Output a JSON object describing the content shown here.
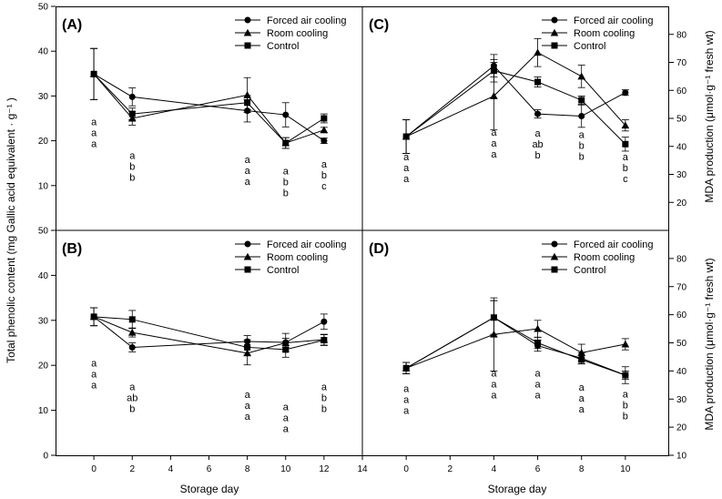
{
  "figure": {
    "ylabel_left": "Total phenolic content (mg Gallic acid equivalent · g⁻¹ )",
    "ylabel_right": "MDA production (μmol·g⁻¹ fresh wt)",
    "xlabel": "Storage day"
  },
  "chart_data": [
    {
      "type": "line",
      "panel": "(A)",
      "xlim": [
        -2,
        14
      ],
      "ylim": [
        0,
        50
      ],
      "xticks": [
        0,
        2,
        4,
        6,
        8,
        10,
        12,
        14
      ],
      "yticks": [
        10,
        20,
        30,
        40,
        50
      ],
      "ytick_side": "left",
      "legend": "top-right",
      "x": [
        0,
        2,
        8,
        10,
        12
      ],
      "series": [
        {
          "name": "Forced air cooling",
          "marker": "circle",
          "values": [
            34.9,
            29.8,
            26.7,
            25.8,
            20.0
          ],
          "errors": [
            5.7,
            2.0,
            2.5,
            2.7,
            0.6
          ]
        },
        {
          "name": "Room cooling",
          "marker": "triangle",
          "values": [
            34.9,
            25.0,
            30.2,
            19.5,
            22.4
          ],
          "errors": [
            5.7,
            1.5,
            3.9,
            1.2,
            0.6
          ]
        },
        {
          "name": "Control",
          "marker": "square",
          "values": [
            34.9,
            26.0,
            28.5,
            19.5,
            25.0
          ],
          "errors": [
            5.7,
            1.3,
            1.6,
            1.2,
            1.0
          ]
        }
      ],
      "letters": [
        {
          "x": 0,
          "y": 23.5,
          "text": [
            "a",
            "a",
            "a"
          ]
        },
        {
          "x": 2,
          "y": 16.0,
          "text": [
            "a",
            "b",
            "b"
          ]
        },
        {
          "x": 8,
          "y": 15.0,
          "text": [
            "a",
            "a",
            "a"
          ]
        },
        {
          "x": 10,
          "y": 12.5,
          "text": [
            "a",
            "b",
            "b"
          ]
        },
        {
          "x": 12,
          "y": 14.0,
          "text": [
            "a",
            "b",
            "c"
          ]
        }
      ]
    },
    {
      "type": "line",
      "panel": "(C)",
      "xlim": [
        -2,
        12
      ],
      "ylim": [
        10,
        90
      ],
      "xticks": [
        0,
        2,
        4,
        6,
        8,
        10
      ],
      "yticks": [
        20,
        30,
        40,
        50,
        60,
        70,
        80
      ],
      "ytick_side": "right",
      "legend": "top-right",
      "x": [
        0,
        4,
        6,
        8,
        10
      ],
      "series": [
        {
          "name": "Forced air cooling",
          "marker": "circle",
          "values": [
            43.5,
            68.8,
            51.6,
            50.8,
            59.2
          ],
          "errors": [
            6.0,
            4.0,
            1.5,
            4.0,
            1.0
          ]
        },
        {
          "name": "Room cooling",
          "marker": "triangle",
          "values": [
            43.5,
            58.0,
            73.5,
            65.0,
            47.5
          ],
          "errors": [
            6.0,
            12.0,
            5.0,
            4.0,
            2.0
          ]
        },
        {
          "name": "Control",
          "marker": "square",
          "values": [
            43.5,
            67.0,
            63.0,
            56.5,
            40.8
          ],
          "errors": [
            6.0,
            4.0,
            1.8,
            1.5,
            2.5
          ]
        }
      ],
      "letters": [
        {
          "x": 0,
          "y": 35.0,
          "text": [
            "a",
            "a",
            "a"
          ]
        },
        {
          "x": 4,
          "y": 43.8,
          "text": [
            "a",
            "a",
            "a"
          ]
        },
        {
          "x": 6,
          "y": 43.5,
          "text": [
            "a",
            "ab",
            "b"
          ]
        },
        {
          "x": 8,
          "y": 43.0,
          "text": [
            "a",
            "b",
            "b"
          ]
        },
        {
          "x": 10,
          "y": 35.0,
          "text": [
            "a",
            "b",
            "c"
          ]
        }
      ]
    },
    {
      "type": "line",
      "panel": "(B)",
      "xlim": [
        -2,
        14
      ],
      "ylim": [
        0,
        50
      ],
      "xticks": [
        0,
        2,
        4,
        6,
        8,
        10,
        12,
        14
      ],
      "yticks": [
        0,
        10,
        20,
        30,
        40,
        50
      ],
      "ytick_side": "left",
      "legend": "top-right",
      "x": [
        0,
        2,
        8,
        10,
        12
      ],
      "series": [
        {
          "name": "Forced air cooling",
          "marker": "circle",
          "values": [
            30.8,
            24.0,
            25.3,
            25.1,
            29.7
          ],
          "errors": [
            2.0,
            1.0,
            1.3,
            2.0,
            1.7
          ]
        },
        {
          "name": "Room cooling",
          "marker": "triangle",
          "values": [
            30.8,
            27.3,
            22.7,
            25.0,
            25.7
          ],
          "errors": [
            2.0,
            1.0,
            2.6,
            1.0,
            1.2
          ]
        },
        {
          "name": "Control",
          "marker": "square",
          "values": [
            30.8,
            30.2,
            24.0,
            23.5,
            25.6
          ],
          "errors": [
            2.0,
            2.0,
            1.7,
            1.7,
            1.2
          ]
        }
      ],
      "letters": [
        {
          "x": 0,
          "y": 19.7,
          "text": [
            "a",
            "a",
            "a"
          ]
        },
        {
          "x": 2,
          "y": 14.5,
          "text": [
            "a",
            "ab",
            "b"
          ]
        },
        {
          "x": 8,
          "y": 12.8,
          "text": [
            "a",
            "a",
            "a"
          ]
        },
        {
          "x": 10,
          "y": 10.0,
          "text": [
            "a",
            "a",
            "a"
          ]
        },
        {
          "x": 12,
          "y": 14.5,
          "text": [
            "a",
            "b",
            "b"
          ]
        }
      ]
    },
    {
      "type": "line",
      "panel": "(D)",
      "xlim": [
        -2,
        12
      ],
      "ylim": [
        10,
        90
      ],
      "xticks": [
        0,
        2,
        4,
        6,
        8,
        10
      ],
      "yticks": [
        10,
        20,
        30,
        40,
        50,
        60,
        70,
        80
      ],
      "ytick_side": "right",
      "legend": "top-right",
      "x": [
        0,
        4,
        6,
        8,
        10
      ],
      "series": [
        {
          "name": "Forced air cooling",
          "marker": "circle",
          "values": [
            41.0,
            59.0,
            49.0,
            44.5,
            38.5
          ],
          "errors": [
            2.0,
            6.0,
            2.0,
            2.0,
            1.5
          ]
        },
        {
          "name": "Room cooling",
          "marker": "triangle",
          "values": [
            41.0,
            53.0,
            55.0,
            46.5,
            49.5
          ],
          "errors": [
            2.0,
            13.0,
            3.0,
            3.0,
            2.0
          ]
        },
        {
          "name": "Control",
          "marker": "square",
          "values": [
            41.0,
            59.0,
            50.0,
            44.0,
            38.5
          ],
          "errors": [
            2.0,
            6.0,
            2.0,
            1.5,
            3.0
          ]
        }
      ],
      "letters": [
        {
          "x": 0,
          "y": 32.5,
          "text": [
            "a",
            "a",
            "a"
          ]
        },
        {
          "x": 4,
          "y": 38.0,
          "text": [
            "a",
            "a",
            "a"
          ]
        },
        {
          "x": 6,
          "y": 38.0,
          "text": [
            "a",
            "a",
            "a"
          ]
        },
        {
          "x": 8,
          "y": 33.0,
          "text": [
            "a",
            "a",
            "a"
          ]
        },
        {
          "x": 10,
          "y": 30.5,
          "text": [
            "a",
            "b",
            "b"
          ]
        }
      ]
    }
  ]
}
